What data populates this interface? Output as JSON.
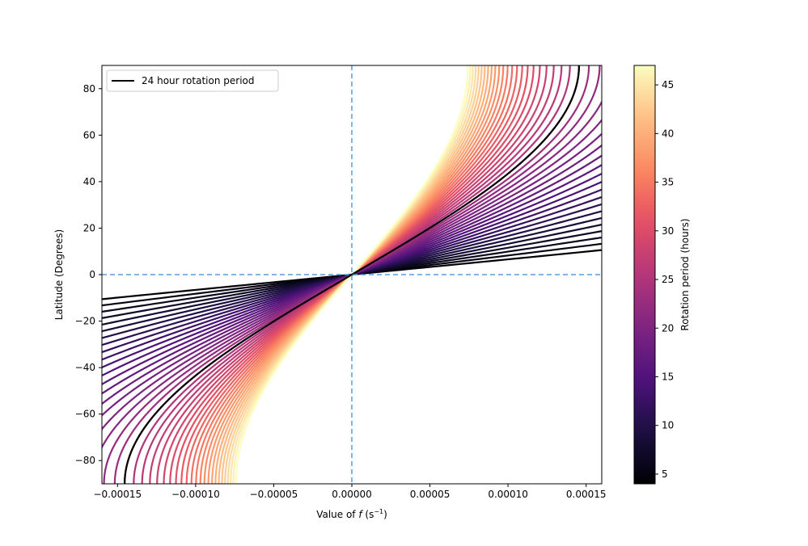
{
  "chart_data": {
    "type": "line",
    "title": "",
    "xlabel_prefix": "Value of ",
    "xlabel_var": "f",
    "xlabel_unit": " (s",
    "xlabel_exp": "−1",
    "xlabel_close": ")",
    "ylabel": "Latitude (Degrees)",
    "xlim": [
      -0.00016,
      0.00016
    ],
    "ylim": [
      -90,
      90
    ],
    "x_ticks": [
      -0.00015,
      -0.0001,
      -5e-05,
      0,
      5e-05,
      0.0001,
      0.00015
    ],
    "x_tick_labels": [
      "−0.00015",
      "−0.00010",
      "−0.00005",
      "0.00000",
      "0.00005",
      "0.00010",
      "0.00015"
    ],
    "y_ticks": [
      -80,
      -60,
      -40,
      -20,
      0,
      20,
      40,
      60,
      80
    ],
    "y_tick_labels": [
      "−80",
      "−60",
      "−40",
      "−20",
      "0",
      "20",
      "40",
      "60",
      "80"
    ],
    "reference_lines": {
      "x": 0,
      "y": 0,
      "style": "dashed",
      "color": "#5b9bd5"
    },
    "grid": false,
    "curve_formula": "f = 2 * (2*pi / (P hours * 3600)) * sin(latitude)",
    "rotation_periods_hours": [
      4,
      5,
      6,
      7,
      8,
      9,
      10,
      11,
      12,
      13,
      14,
      15,
      16,
      17,
      18,
      19,
      20,
      21,
      22,
      23,
      24,
      25,
      26,
      27,
      28,
      29,
      30,
      31,
      32,
      33,
      34,
      35,
      36,
      37,
      38,
      39,
      40,
      41,
      42,
      43,
      44,
      45,
      46,
      47
    ],
    "highlight_series": {
      "name": "24 hour rotation period",
      "period_hours": 24,
      "color": "#000000"
    },
    "legend": {
      "position": "top-left",
      "entries": [
        "24 hour rotation period"
      ]
    },
    "colormap": "magma",
    "colorbar": {
      "label": "Rotation period (hours)",
      "min": 4,
      "max": 47,
      "ticks": [
        5,
        10,
        15,
        20,
        25,
        30,
        35,
        40,
        45
      ],
      "tick_labels": [
        "5",
        "10",
        "15",
        "20",
        "25",
        "30",
        "35",
        "40",
        "45"
      ]
    }
  }
}
